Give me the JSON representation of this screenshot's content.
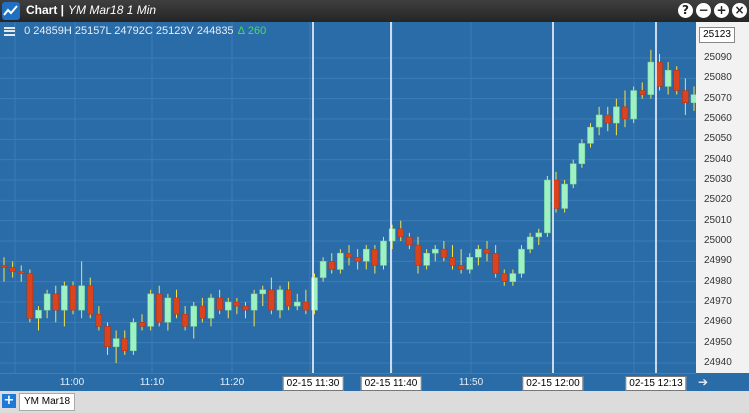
{
  "window": {
    "title": "Chart |",
    "symbol": "YM Mar18 1 Min",
    "buttons": [
      "?",
      "−",
      "+",
      "×"
    ]
  },
  "legend": {
    "open": "0",
    "high": "24859H",
    "low": "25157L",
    "close": "24792C",
    "volume": "25123V",
    "last": "244835",
    "change_symbol": "Δ",
    "change": "260"
  },
  "yaxis": {
    "last_price": "25123",
    "labels": [
      "25090",
      "25080",
      "25070",
      "25060",
      "25050",
      "25040",
      "25030",
      "25020",
      "25010",
      "25000",
      "24990",
      "24980",
      "24970",
      "24960",
      "24950",
      "24940"
    ]
  },
  "xaxis": {
    "labels": [
      "11:00",
      "11:10",
      "11:20",
      "11:50"
    ],
    "badges": [
      "02-15  11:30",
      "02-15  11:40",
      "02-15  12:00",
      "02-15  12:13"
    ]
  },
  "tab": {
    "label": "YM Mar18"
  },
  "colors": {
    "up": "#9ff0c2",
    "down": "#d9431e",
    "background": "#2a6ca8",
    "wick": "#f6e24a"
  },
  "chart_data": {
    "type": "candlestick",
    "ylim": [
      24935,
      25100
    ],
    "candles": [
      [
        24988,
        24992,
        24980,
        24987
      ],
      [
        24987,
        24990,
        24982,
        24985
      ],
      [
        24985,
        24988,
        24980,
        24984
      ],
      [
        24984,
        24986,
        24960,
        24962
      ],
      [
        24962,
        24968,
        24956,
        24966
      ],
      [
        24966,
        24976,
        24962,
        24974
      ],
      [
        24974,
        24978,
        24960,
        24966
      ],
      [
        24966,
        24980,
        24958,
        24978
      ],
      [
        24978,
        24980,
        24964,
        24966
      ],
      [
        24966,
        24990,
        24962,
        24978
      ],
      [
        24978,
        24982,
        24962,
        24964
      ],
      [
        24964,
        24968,
        24956,
        24958
      ],
      [
        24958,
        24960,
        24944,
        24948
      ],
      [
        24948,
        24956,
        24940,
        24952
      ],
      [
        24952,
        24956,
        24944,
        24946
      ],
      [
        24946,
        24962,
        24944,
        24960
      ],
      [
        24960,
        24964,
        24956,
        24958
      ],
      [
        24958,
        24976,
        24956,
        24974
      ],
      [
        24974,
        24978,
        24958,
        24960
      ],
      [
        24960,
        24974,
        24956,
        24972
      ],
      [
        24972,
        24976,
        24962,
        24964
      ],
      [
        24964,
        24968,
        24956,
        24958
      ],
      [
        24958,
        24970,
        24952,
        24968
      ],
      [
        24968,
        24972,
        24960,
        24962
      ],
      [
        24962,
        24974,
        24958,
        24972
      ],
      [
        24972,
        24976,
        24964,
        24966
      ],
      [
        24966,
        24972,
        24962,
        24970
      ],
      [
        24970,
        24972,
        24964,
        24968
      ],
      [
        24968,
        24970,
        24962,
        24966
      ],
      [
        24966,
        24976,
        24958,
        24974
      ],
      [
        24974,
        24978,
        24968,
        24976
      ],
      [
        24976,
        24982,
        24964,
        24966
      ],
      [
        24966,
        24978,
        24962,
        24976
      ],
      [
        24976,
        24980,
        24966,
        24968
      ],
      [
        24968,
        24974,
        24966,
        24970
      ],
      [
        24970,
        24976,
        24964,
        24966
      ],
      [
        24966,
        24984,
        24964,
        24982
      ],
      [
        24982,
        24992,
        24980,
        24990
      ],
      [
        24990,
        24994,
        24984,
        24986
      ],
      [
        24986,
        24996,
        24984,
        24994
      ],
      [
        24994,
        24998,
        24988,
        24992
      ],
      [
        24992,
        24996,
        24986,
        24990
      ],
      [
        24990,
        24998,
        24986,
        24996
      ],
      [
        24996,
        24998,
        24984,
        24988
      ],
      [
        24988,
        25002,
        24986,
        25000
      ],
      [
        25000,
        25008,
        24996,
        25006
      ],
      [
        25006,
        25010,
        25000,
        25002
      ],
      [
        25002,
        25004,
        24996,
        24998
      ],
      [
        24998,
        25002,
        24984,
        24988
      ],
      [
        24988,
        24996,
        24986,
        24994
      ],
      [
        24994,
        24998,
        24990,
        24996
      ],
      [
        24996,
        25000,
        24990,
        24992
      ],
      [
        24992,
        24998,
        24986,
        24988
      ],
      [
        24988,
        24996,
        24984,
        24986
      ],
      [
        24986,
        24994,
        24984,
        24992
      ],
      [
        24992,
        24998,
        24988,
        24996
      ],
      [
        24996,
        25000,
        24990,
        24994
      ],
      [
        24994,
        24998,
        24982,
        24984
      ],
      [
        24984,
        24986,
        24978,
        24980
      ],
      [
        24980,
        24986,
        24978,
        24984
      ],
      [
        24984,
        24998,
        24982,
        24996
      ],
      [
        24996,
        25004,
        24994,
        25002
      ],
      [
        25002,
        25006,
        24998,
        25004
      ],
      [
        25004,
        25032,
        25002,
        25030
      ],
      [
        25030,
        25034,
        25014,
        25016
      ],
      [
        25016,
        25030,
        25014,
        25028
      ],
      [
        25028,
        25040,
        25026,
        25038
      ],
      [
        25038,
        25050,
        25036,
        25048
      ],
      [
        25048,
        25058,
        25046,
        25056
      ],
      [
        25056,
        25066,
        25052,
        25062
      ],
      [
        25062,
        25066,
        25054,
        25058
      ],
      [
        25058,
        25070,
        25052,
        25066
      ],
      [
        25066,
        25074,
        25056,
        25060
      ],
      [
        25060,
        25076,
        25058,
        25074
      ],
      [
        25074,
        25078,
        25070,
        25072
      ],
      [
        25072,
        25094,
        25070,
        25088
      ],
      [
        25088,
        25092,
        25074,
        25076
      ],
      [
        25076,
        25088,
        25072,
        25084
      ],
      [
        25084,
        25086,
        25072,
        25074
      ],
      [
        25074,
        25080,
        25062,
        25068
      ],
      [
        25068,
        25076,
        25064,
        25072
      ]
    ]
  }
}
